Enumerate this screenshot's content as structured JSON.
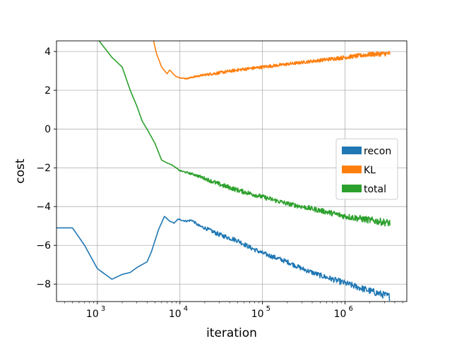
{
  "chart_data": {
    "type": "line",
    "title": "",
    "xlabel": "iteration",
    "ylabel": "cost",
    "xscale": "log",
    "xlim": [
      320,
      5600000
    ],
    "ylim": [
      -8.9,
      4.55
    ],
    "grid": true,
    "legend_position": "center-right",
    "x_ticks": [
      {
        "value": 1000,
        "base": "10",
        "exp": "3"
      },
      {
        "value": 10000,
        "base": "10",
        "exp": "4"
      },
      {
        "value": 100000,
        "base": "10",
        "exp": "5"
      },
      {
        "value": 1000000,
        "base": "10",
        "exp": "6"
      }
    ],
    "y_ticks": [
      {
        "value": 4,
        "label": "4"
      },
      {
        "value": 2,
        "label": "2"
      },
      {
        "value": 0,
        "label": "0"
      },
      {
        "value": -2,
        "label": "−2"
      },
      {
        "value": -4,
        "label": "−4"
      },
      {
        "value": -6,
        "label": "−6"
      },
      {
        "value": -8,
        "label": "−8"
      }
    ],
    "series": [
      {
        "name": "recon",
        "color": "#1f77b4",
        "noise": 0.12,
        "x": [
          320,
          500,
          700,
          1000,
          1500,
          2000,
          2500,
          3000,
          4000,
          4500,
          5500,
          6500,
          7500,
          8500,
          9500,
          10500,
          12000,
          14000,
          17000,
          20000,
          30000,
          50000,
          70000,
          100000,
          200000,
          300000,
          500000,
          1000000,
          2000000,
          3500000
        ],
        "y": [
          -5.1,
          -5.1,
          -6.0,
          -7.2,
          -7.75,
          -7.5,
          -7.4,
          -7.15,
          -6.85,
          -6.35,
          -5.2,
          -4.5,
          -4.75,
          -4.85,
          -4.65,
          -4.7,
          -4.75,
          -4.7,
          -5.0,
          -5.1,
          -5.45,
          -5.75,
          -6.1,
          -6.4,
          -6.85,
          -7.2,
          -7.55,
          -7.95,
          -8.35,
          -8.65
        ]
      },
      {
        "name": "KL",
        "color": "#ff7f0e",
        "noise": 0.08,
        "x": [
          4800,
          5200,
          6000,
          7000,
          7500,
          9000,
          10000,
          12000,
          15000,
          20000,
          30000,
          50000,
          100000,
          200000,
          500000,
          1000000,
          2000000,
          3500000
        ],
        "y": [
          4.55,
          3.9,
          3.2,
          2.85,
          3.05,
          2.7,
          2.65,
          2.6,
          2.7,
          2.8,
          2.9,
          3.05,
          3.2,
          3.35,
          3.55,
          3.7,
          3.85,
          3.9
        ]
      },
      {
        "name": "total",
        "color": "#2ca02c",
        "noise": 0.12,
        "x": [
          1050,
          1500,
          2000,
          2500,
          3000,
          3500,
          4000,
          5000,
          6000,
          7000,
          8000,
          10000,
          15000,
          20000,
          30000,
          50000,
          100000,
          200000,
          500000,
          1000000,
          2000000,
          3500000
        ],
        "y": [
          4.55,
          3.7,
          3.2,
          2.0,
          1.2,
          0.4,
          0.0,
          -0.75,
          -1.6,
          -1.75,
          -1.85,
          -2.15,
          -2.35,
          -2.55,
          -2.85,
          -3.15,
          -3.5,
          -3.85,
          -4.2,
          -4.5,
          -4.7,
          -4.85
        ]
      }
    ]
  }
}
